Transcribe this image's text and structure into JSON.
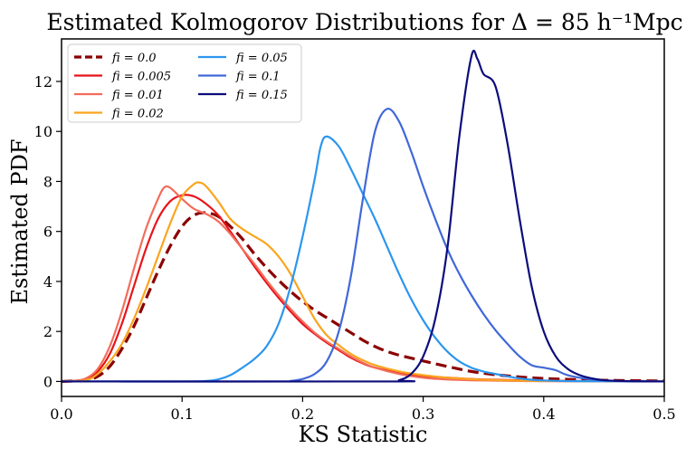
{
  "chart_data": {
    "type": "line",
    "title": "Estimated Kolmogorov Distributions for Δ = 85 h⁻¹Mpc",
    "xlabel": "KS Statistic",
    "ylabel": "Estimated PDF",
    "xlim": [
      0.0,
      0.5
    ],
    "ylim": [
      -0.6,
      13.7
    ],
    "xticks": [
      0.0,
      0.1,
      0.2,
      0.3,
      0.4,
      0.5
    ],
    "xtick_labels": [
      "0.0",
      "0.1",
      "0.2",
      "0.3",
      "0.4",
      "0.5"
    ],
    "yticks": [
      0,
      2,
      4,
      6,
      8,
      10,
      12
    ],
    "ytick_labels": [
      "0",
      "2",
      "4",
      "6",
      "8",
      "10",
      "12"
    ],
    "grid": false,
    "legend_position": "top-left",
    "series": [
      {
        "name": "f_i = 0.0",
        "label": "fi = 0.0",
        "color": "#8b0000",
        "dashed": true,
        "points": [
          [
            0,
            0
          ],
          [
            0.02,
            0.05
          ],
          [
            0.03,
            0.2
          ],
          [
            0.04,
            0.6
          ],
          [
            0.05,
            1.3
          ],
          [
            0.06,
            2.2
          ],
          [
            0.07,
            3.3
          ],
          [
            0.08,
            4.4
          ],
          [
            0.09,
            5.4
          ],
          [
            0.1,
            6.2
          ],
          [
            0.11,
            6.65
          ],
          [
            0.12,
            6.75
          ],
          [
            0.13,
            6.6
          ],
          [
            0.14,
            6.2
          ],
          [
            0.15,
            5.7
          ],
          [
            0.16,
            5.1
          ],
          [
            0.17,
            4.55
          ],
          [
            0.18,
            4.05
          ],
          [
            0.19,
            3.6
          ],
          [
            0.2,
            3.2
          ],
          [
            0.21,
            2.85
          ],
          [
            0.22,
            2.55
          ],
          [
            0.23,
            2.25
          ],
          [
            0.24,
            1.95
          ],
          [
            0.25,
            1.65
          ],
          [
            0.26,
            1.4
          ],
          [
            0.27,
            1.2
          ],
          [
            0.28,
            1.05
          ],
          [
            0.3,
            0.82
          ],
          [
            0.32,
            0.6
          ],
          [
            0.34,
            0.4
          ],
          [
            0.36,
            0.27
          ],
          [
            0.38,
            0.18
          ],
          [
            0.4,
            0.12
          ],
          [
            0.43,
            0.07
          ],
          [
            0.46,
            0.04
          ],
          [
            0.5,
            0.02
          ]
        ]
      },
      {
        "name": "f_i = 0.005",
        "label": "fi = 0.005",
        "color": "#e8131a",
        "dashed": false,
        "points": [
          [
            0,
            0
          ],
          [
            0.01,
            0.02
          ],
          [
            0.02,
            0.1
          ],
          [
            0.03,
            0.4
          ],
          [
            0.04,
            1.1
          ],
          [
            0.05,
            2.3
          ],
          [
            0.06,
            3.8
          ],
          [
            0.07,
            5.3
          ],
          [
            0.08,
            6.5
          ],
          [
            0.09,
            7.2
          ],
          [
            0.1,
            7.45
          ],
          [
            0.11,
            7.4
          ],
          [
            0.12,
            7.1
          ],
          [
            0.13,
            6.65
          ],
          [
            0.14,
            6.0
          ],
          [
            0.15,
            5.3
          ],
          [
            0.16,
            4.6
          ],
          [
            0.17,
            3.95
          ],
          [
            0.18,
            3.35
          ],
          [
            0.19,
            2.8
          ],
          [
            0.2,
            2.3
          ],
          [
            0.21,
            1.9
          ],
          [
            0.22,
            1.55
          ],
          [
            0.23,
            1.25
          ],
          [
            0.24,
            0.95
          ],
          [
            0.25,
            0.72
          ],
          [
            0.26,
            0.55
          ],
          [
            0.28,
            0.35
          ],
          [
            0.3,
            0.22
          ],
          [
            0.32,
            0.15
          ],
          [
            0.35,
            0.08
          ],
          [
            0.4,
            0.03
          ],
          [
            0.45,
            0.01
          ],
          [
            0.5,
            0
          ]
        ]
      },
      {
        "name": "f_i = 0.01",
        "label": "fi = 0.01",
        "color": "#f26d5b",
        "dashed": false,
        "points": [
          [
            0,
            0
          ],
          [
            0.01,
            0.02
          ],
          [
            0.02,
            0.12
          ],
          [
            0.03,
            0.5
          ],
          [
            0.04,
            1.4
          ],
          [
            0.05,
            2.8
          ],
          [
            0.06,
            4.5
          ],
          [
            0.07,
            6.1
          ],
          [
            0.08,
            7.3
          ],
          [
            0.085,
            7.75
          ],
          [
            0.09,
            7.75
          ],
          [
            0.1,
            7.3
          ],
          [
            0.11,
            6.9
          ],
          [
            0.12,
            6.7
          ],
          [
            0.13,
            6.4
          ],
          [
            0.14,
            5.9
          ],
          [
            0.15,
            5.3
          ],
          [
            0.16,
            4.7
          ],
          [
            0.17,
            4.05
          ],
          [
            0.18,
            3.45
          ],
          [
            0.19,
            2.9
          ],
          [
            0.2,
            2.4
          ],
          [
            0.21,
            1.95
          ],
          [
            0.22,
            1.6
          ],
          [
            0.23,
            1.3
          ],
          [
            0.24,
            1.0
          ],
          [
            0.25,
            0.75
          ],
          [
            0.26,
            0.55
          ],
          [
            0.28,
            0.3
          ],
          [
            0.3,
            0.15
          ],
          [
            0.32,
            0.08
          ],
          [
            0.35,
            0.04
          ],
          [
            0.4,
            0.01
          ],
          [
            0.5,
            0
          ]
        ]
      },
      {
        "name": "f_i = 0.02",
        "label": "fi = 0.02",
        "color": "#fba51e",
        "dashed": false,
        "points": [
          [
            0,
            0
          ],
          [
            0.02,
            0.05
          ],
          [
            0.03,
            0.3
          ],
          [
            0.04,
            0.8
          ],
          [
            0.05,
            1.5
          ],
          [
            0.06,
            2.5
          ],
          [
            0.07,
            3.7
          ],
          [
            0.08,
            5.0
          ],
          [
            0.09,
            6.3
          ],
          [
            0.1,
            7.4
          ],
          [
            0.11,
            7.9
          ],
          [
            0.115,
            7.95
          ],
          [
            0.12,
            7.8
          ],
          [
            0.13,
            7.2
          ],
          [
            0.14,
            6.5
          ],
          [
            0.15,
            6.1
          ],
          [
            0.16,
            5.8
          ],
          [
            0.17,
            5.5
          ],
          [
            0.18,
            5.0
          ],
          [
            0.19,
            4.3
          ],
          [
            0.2,
            3.4
          ],
          [
            0.21,
            2.5
          ],
          [
            0.22,
            1.85
          ],
          [
            0.23,
            1.45
          ],
          [
            0.24,
            1.1
          ],
          [
            0.25,
            0.85
          ],
          [
            0.26,
            0.65
          ],
          [
            0.28,
            0.4
          ],
          [
            0.3,
            0.25
          ],
          [
            0.32,
            0.15
          ],
          [
            0.35,
            0.07
          ],
          [
            0.4,
            0.02
          ],
          [
            0.5,
            0
          ]
        ]
      },
      {
        "name": "f_i = 0.05",
        "label": "fi = 0.05",
        "color": "#2b96ee",
        "dashed": false,
        "points": [
          [
            0,
            0
          ],
          [
            0.1,
            0
          ],
          [
            0.12,
            0.02
          ],
          [
            0.13,
            0.08
          ],
          [
            0.14,
            0.25
          ],
          [
            0.15,
            0.55
          ],
          [
            0.16,
            0.9
          ],
          [
            0.17,
            1.4
          ],
          [
            0.18,
            2.3
          ],
          [
            0.19,
            3.8
          ],
          [
            0.2,
            5.8
          ],
          [
            0.21,
            8.1
          ],
          [
            0.215,
            9.4
          ],
          [
            0.22,
            9.8
          ],
          [
            0.23,
            9.4
          ],
          [
            0.24,
            8.5
          ],
          [
            0.25,
            7.5
          ],
          [
            0.26,
            6.5
          ],
          [
            0.27,
            5.4
          ],
          [
            0.28,
            4.3
          ],
          [
            0.29,
            3.3
          ],
          [
            0.3,
            2.45
          ],
          [
            0.31,
            1.75
          ],
          [
            0.32,
            1.2
          ],
          [
            0.33,
            0.8
          ],
          [
            0.34,
            0.55
          ],
          [
            0.35,
            0.4
          ],
          [
            0.36,
            0.3
          ],
          [
            0.38,
            0.12
          ],
          [
            0.4,
            0.04
          ],
          [
            0.43,
            0.01
          ],
          [
            0.5,
            0
          ]
        ]
      },
      {
        "name": "f_i = 0.1",
        "label": "fi = 0.1",
        "color": "#4068d8",
        "dashed": false,
        "points": [
          [
            0,
            0
          ],
          [
            0.18,
            0
          ],
          [
            0.19,
            0.02
          ],
          [
            0.2,
            0.1
          ],
          [
            0.21,
            0.3
          ],
          [
            0.22,
            0.8
          ],
          [
            0.23,
            2.0
          ],
          [
            0.24,
            4.2
          ],
          [
            0.25,
            7.3
          ],
          [
            0.26,
            10.0
          ],
          [
            0.27,
            10.9
          ],
          [
            0.28,
            10.4
          ],
          [
            0.29,
            9.2
          ],
          [
            0.3,
            7.8
          ],
          [
            0.31,
            6.5
          ],
          [
            0.32,
            5.3
          ],
          [
            0.33,
            4.3
          ],
          [
            0.34,
            3.45
          ],
          [
            0.35,
            2.7
          ],
          [
            0.36,
            2.05
          ],
          [
            0.37,
            1.5
          ],
          [
            0.38,
            1.0
          ],
          [
            0.39,
            0.65
          ],
          [
            0.4,
            0.55
          ],
          [
            0.41,
            0.45
          ],
          [
            0.42,
            0.25
          ],
          [
            0.44,
            0.08
          ],
          [
            0.46,
            0.02
          ],
          [
            0.5,
            0
          ]
        ]
      },
      {
        "name": "f_i = 0.15",
        "label": "fi = 0.15",
        "color": "#0c0c7c",
        "dashed": false,
        "points": [
          [
            0,
            0
          ],
          [
            0.27,
            0
          ],
          [
            0.28,
            0.05
          ],
          [
            0.29,
            0.3
          ],
          [
            0.3,
            1.0
          ],
          [
            0.31,
            2.5
          ],
          [
            0.32,
            5.3
          ],
          [
            0.33,
            9.8
          ],
          [
            0.34,
            13.0
          ],
          [
            0.345,
            12.9
          ],
          [
            0.35,
            12.3
          ],
          [
            0.36,
            11.8
          ],
          [
            0.37,
            9.5
          ],
          [
            0.38,
            6.5
          ],
          [
            0.39,
            3.8
          ],
          [
            0.4,
            2.0
          ],
          [
            0.41,
            1.0
          ],
          [
            0.42,
            0.5
          ],
          [
            0.43,
            0.25
          ],
          [
            0.44,
            0.12
          ],
          [
            0.45,
            0.05
          ],
          [
            0.47,
            0.01
          ],
          [
            0.5,
            0
          ]
        ]
      }
    ]
  }
}
